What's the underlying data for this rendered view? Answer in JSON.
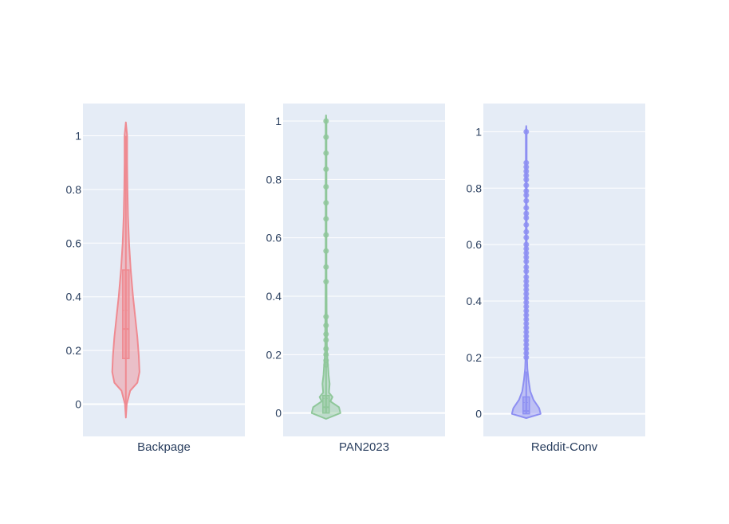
{
  "chart_data": [
    {
      "type": "violin",
      "category": "Backpage",
      "color": "#EF8A91",
      "ylim": [
        -0.12,
        1.12
      ],
      "y_ticks": [
        0,
        0.2,
        0.4,
        0.6,
        0.8,
        1
      ],
      "y_tick_labels": [
        "0",
        "0.2",
        "0.4",
        "0.6",
        "0.8",
        "1"
      ],
      "grid": true,
      "box": {
        "q1": 0.17,
        "median": 0.28,
        "q3": 0.5,
        "mean": 0.35,
        "whisker_low": 0.0,
        "whisker_high": 1.0
      },
      "density": [
        {
          "y": -0.05,
          "w": 0.0
        },
        {
          "y": 0.0,
          "w": 0.06
        },
        {
          "y": 0.05,
          "w": 0.3
        },
        {
          "y": 0.08,
          "w": 0.8
        },
        {
          "y": 0.12,
          "w": 0.95
        },
        {
          "y": 0.18,
          "w": 0.9
        },
        {
          "y": 0.25,
          "w": 0.8
        },
        {
          "y": 0.32,
          "w": 0.66
        },
        {
          "y": 0.4,
          "w": 0.5
        },
        {
          "y": 0.5,
          "w": 0.34
        },
        {
          "y": 0.6,
          "w": 0.22
        },
        {
          "y": 0.7,
          "w": 0.15
        },
        {
          "y": 0.8,
          "w": 0.11
        },
        {
          "y": 0.9,
          "w": 0.09
        },
        {
          "y": 1.0,
          "w": 0.09
        },
        {
          "y": 1.05,
          "w": 0.0
        }
      ],
      "points": []
    },
    {
      "type": "violin",
      "category": "PAN2023",
      "color": "#8FC79A",
      "ylim": [
        -0.08,
        1.06
      ],
      "y_ticks": [
        0,
        0.2,
        0.4,
        0.6,
        0.8,
        1
      ],
      "y_tick_labels": [
        "0",
        "0.2",
        "0.4",
        "0.6",
        "0.8",
        "1"
      ],
      "grid": true,
      "box": {
        "q1": 0.0,
        "median": 0.02,
        "q3": 0.06,
        "mean": 0.05,
        "whisker_low": 0.0,
        "whisker_high": 0.16
      },
      "density": [
        {
          "y": -0.02,
          "w": 0.0
        },
        {
          "y": 0.0,
          "w": 1.0
        },
        {
          "y": 0.02,
          "w": 0.9
        },
        {
          "y": 0.04,
          "w": 0.3
        },
        {
          "y": 0.055,
          "w": 0.45
        },
        {
          "y": 0.07,
          "w": 0.2
        },
        {
          "y": 0.1,
          "w": 0.25
        },
        {
          "y": 0.13,
          "w": 0.18
        },
        {
          "y": 0.16,
          "w": 0.14
        },
        {
          "y": 0.2,
          "w": 0.07
        },
        {
          "y": 0.25,
          "w": 0.05
        },
        {
          "y": 0.28,
          "w": 0.06
        },
        {
          "y": 0.35,
          "w": 0.04
        },
        {
          "y": 0.5,
          "w": 0.03
        },
        {
          "y": 1.0,
          "w": 0.03
        },
        {
          "y": 1.02,
          "w": 0.0
        }
      ],
      "points": [
        0.45,
        0.5,
        0.555,
        0.61,
        0.665,
        0.72,
        0.775,
        0.835,
        0.89,
        0.945,
        1.0,
        0.33,
        0.3,
        0.27,
        0.25,
        0.22,
        0.2,
        0.18,
        0.165
      ]
    },
    {
      "type": "violin",
      "category": "Reddit-Conv",
      "color": "#8D8FF2",
      "ylim": [
        -0.08,
        1.1
      ],
      "y_ticks": [
        0,
        0.2,
        0.4,
        0.6,
        0.8,
        1
      ],
      "y_tick_labels": [
        "0",
        "0.2",
        "0.4",
        "0.6",
        "0.8",
        "1"
      ],
      "grid": true,
      "box": {
        "q1": 0.0,
        "median": 0.01,
        "q3": 0.06,
        "mean": 0.04,
        "whisker_low": 0.0,
        "whisker_high": 0.15
      },
      "density": [
        {
          "y": -0.015,
          "w": 0.0
        },
        {
          "y": 0.0,
          "w": 1.0
        },
        {
          "y": 0.02,
          "w": 0.9
        },
        {
          "y": 0.05,
          "w": 0.5
        },
        {
          "y": 0.08,
          "w": 0.28
        },
        {
          "y": 0.12,
          "w": 0.16
        },
        {
          "y": 0.16,
          "w": 0.08
        },
        {
          "y": 0.2,
          "w": 0.05
        },
        {
          "y": 0.3,
          "w": 0.035
        },
        {
          "y": 0.5,
          "w": 0.03
        },
        {
          "y": 1.0,
          "w": 0.03
        },
        {
          "y": 1.02,
          "w": 0.0
        }
      ],
      "points": [
        1.0,
        0.89,
        0.875,
        0.86,
        0.845,
        0.83,
        0.81,
        0.79,
        0.775,
        0.755,
        0.73,
        0.71,
        0.695,
        0.67,
        0.645,
        0.625,
        0.6,
        0.585,
        0.57,
        0.555,
        0.54,
        0.52,
        0.505,
        0.485,
        0.47,
        0.455,
        0.44,
        0.425,
        0.41,
        0.395,
        0.38,
        0.365,
        0.35,
        0.335,
        0.32,
        0.305,
        0.29,
        0.275,
        0.26,
        0.245,
        0.23,
        0.215,
        0.2
      ]
    }
  ]
}
